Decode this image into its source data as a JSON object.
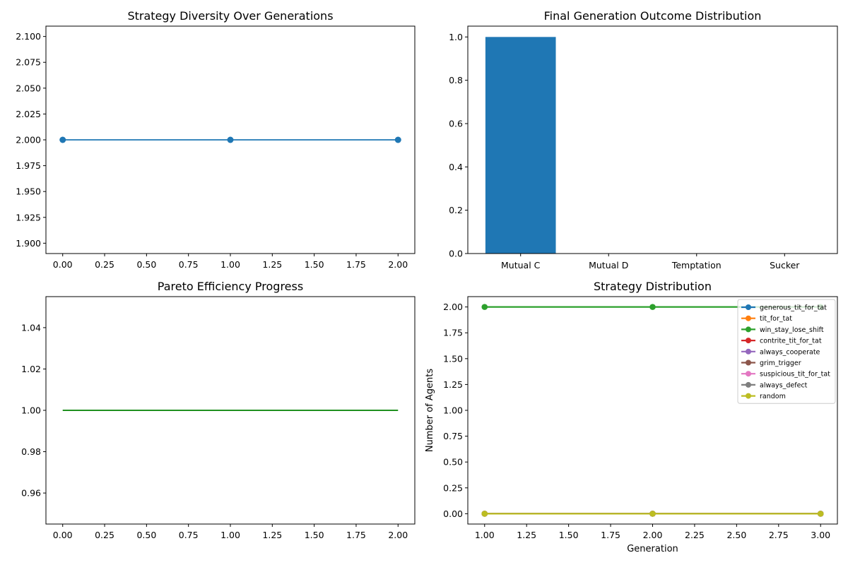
{
  "chart_data": [
    {
      "type": "line",
      "title": "Strategy Diversity Over Generations",
      "xlabel": "",
      "ylabel": "",
      "x": [
        0,
        1,
        2
      ],
      "series": [
        {
          "values": [
            2,
            2,
            2
          ],
          "color": "#1f77b4",
          "markers": true
        }
      ],
      "xlim": [
        -0.1,
        2.1
      ],
      "ylim": [
        1.89,
        2.11
      ],
      "xticks": [
        0,
        0.25,
        0.5,
        0.75,
        1,
        1.25,
        1.5,
        1.75,
        2
      ],
      "xtick_labels": [
        "0.00",
        "0.25",
        "0.50",
        "0.75",
        "1.00",
        "1.25",
        "1.50",
        "1.75",
        "2.00"
      ],
      "yticks": [
        1.9,
        1.925,
        1.95,
        1.975,
        2.0,
        2.025,
        2.05,
        2.075,
        2.1
      ],
      "ytick_labels": [
        "1.900",
        "1.925",
        "1.950",
        "1.975",
        "2.000",
        "2.025",
        "2.050",
        "2.075",
        "2.100"
      ],
      "grid": false
    },
    {
      "type": "bar",
      "title": "Final Generation Outcome Distribution",
      "xlabel": "",
      "ylabel": "",
      "categories": [
        "Mutual C",
        "Mutual D",
        "Temptation",
        "Sucker"
      ],
      "values": [
        1.0,
        0.0,
        0.0,
        0.0
      ],
      "color": "#1f77b4",
      "ylim": [
        0,
        1.05
      ],
      "yticks": [
        0,
        0.2,
        0.4,
        0.6,
        0.8,
        1.0
      ],
      "ytick_labels": [
        "0.0",
        "0.2",
        "0.4",
        "0.6",
        "0.8",
        "1.0"
      ],
      "grid": false
    },
    {
      "type": "line",
      "title": "Pareto Efficiency Progress",
      "xlabel": "",
      "ylabel": "",
      "x": [
        0,
        1,
        2
      ],
      "series": [
        {
          "values": [
            1,
            1,
            1
          ],
          "color": "#008000",
          "markers": false
        }
      ],
      "xlim": [
        -0.1,
        2.1
      ],
      "ylim": [
        0.945,
        1.055
      ],
      "xticks": [
        0,
        0.25,
        0.5,
        0.75,
        1,
        1.25,
        1.5,
        1.75,
        2
      ],
      "xtick_labels": [
        "0.00",
        "0.25",
        "0.50",
        "0.75",
        "1.00",
        "1.25",
        "1.50",
        "1.75",
        "2.00"
      ],
      "yticks": [
        0.96,
        0.98,
        1.0,
        1.02,
        1.04
      ],
      "ytick_labels": [
        "0.96",
        "0.98",
        "1.00",
        "1.02",
        "1.04"
      ],
      "grid": false
    },
    {
      "type": "line",
      "title": "Strategy Distribution",
      "xlabel": "Generation",
      "ylabel": "Number of Agents",
      "x": [
        1,
        2,
        3
      ],
      "series": [
        {
          "name": "generous_tit_for_tat",
          "values": [
            0,
            0,
            0
          ],
          "color": "#1f77b4"
        },
        {
          "name": "tit_for_tat",
          "values": [
            0,
            0,
            0
          ],
          "color": "#ff7f0e"
        },
        {
          "name": "win_stay_lose_shift",
          "values": [
            2,
            2,
            2
          ],
          "color": "#2ca02c"
        },
        {
          "name": "contrite_tit_for_tat",
          "values": [
            0,
            0,
            0
          ],
          "color": "#d62728"
        },
        {
          "name": "always_cooperate",
          "values": [
            0,
            0,
            0
          ],
          "color": "#9467bd"
        },
        {
          "name": "grim_trigger",
          "values": [
            0,
            0,
            0
          ],
          "color": "#8c564b"
        },
        {
          "name": "suspicious_tit_for_tat",
          "values": [
            0,
            0,
            0
          ],
          "color": "#e377c2"
        },
        {
          "name": "always_defect",
          "values": [
            0,
            0,
            0
          ],
          "color": "#7f7f7f"
        },
        {
          "name": "random",
          "values": [
            0,
            0,
            0
          ],
          "color": "#bcbd22"
        }
      ],
      "xlim": [
        0.9,
        3.1
      ],
      "ylim": [
        -0.1,
        2.1
      ],
      "xticks": [
        1,
        1.25,
        1.5,
        1.75,
        2,
        2.25,
        2.5,
        2.75,
        3
      ],
      "xtick_labels": [
        "1.00",
        "1.25",
        "1.50",
        "1.75",
        "2.00",
        "2.25",
        "2.50",
        "2.75",
        "3.00"
      ],
      "yticks": [
        0,
        0.25,
        0.5,
        0.75,
        1,
        1.25,
        1.5,
        1.75,
        2
      ],
      "ytick_labels": [
        "0.00",
        "0.25",
        "0.50",
        "0.75",
        "1.00",
        "1.25",
        "1.50",
        "1.75",
        "2.00"
      ],
      "legend": "top-right",
      "grid": false
    }
  ]
}
